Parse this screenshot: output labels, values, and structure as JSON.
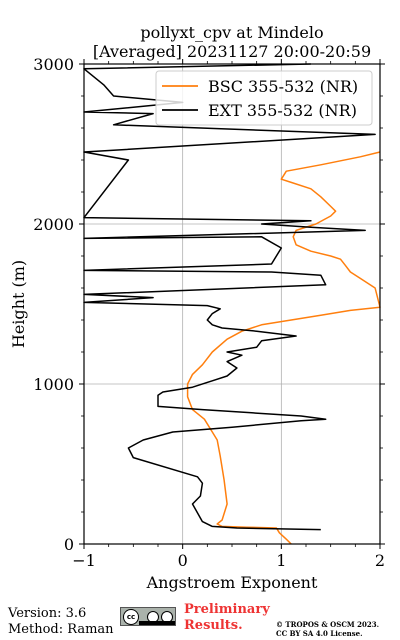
{
  "chart_data": {
    "type": "line",
    "title": [
      "pollyxt_cpv at Mindelo",
      "[Averaged] 20231127 20:00-20:59"
    ],
    "xlabel": "Angstroem Exponent",
    "ylabel": "Height (m)",
    "xlim": [
      -1,
      2
    ],
    "ylim": [
      0,
      3000
    ],
    "xticks": [
      -1,
      0,
      1,
      2
    ],
    "xtick_labels": [
      "−1",
      "0",
      "1",
      "2"
    ],
    "yticks": [
      0,
      1000,
      2000,
      3000
    ],
    "ytick_labels": [
      "0",
      "1000",
      "2000",
      "3000"
    ],
    "grid": true,
    "legend": "top-right",
    "series": [
      {
        "name": "BSC 355-532 (NR)",
        "color": "#ff7f0e",
        "points": [
          [
            1.1,
            0
          ],
          [
            1.05,
            30
          ],
          [
            0.98,
            70
          ],
          [
            0.95,
            100
          ],
          [
            0.65,
            105
          ],
          [
            0.4,
            110
          ],
          [
            0.35,
            125
          ],
          [
            0.4,
            150
          ],
          [
            0.45,
            250
          ],
          [
            0.42,
            400
          ],
          [
            0.38,
            550
          ],
          [
            0.35,
            650
          ],
          [
            0.3,
            700
          ],
          [
            0.22,
            780
          ],
          [
            0.1,
            840
          ],
          [
            0.05,
            920
          ],
          [
            0.05,
            1000
          ],
          [
            0.1,
            1060
          ],
          [
            0.2,
            1120
          ],
          [
            0.3,
            1200
          ],
          [
            0.45,
            1280
          ],
          [
            0.6,
            1330
          ],
          [
            0.8,
            1370
          ],
          [
            1.1,
            1400
          ],
          [
            1.4,
            1430
          ],
          [
            1.7,
            1460
          ],
          [
            2,
            1480
          ],
          [
            1.95,
            1600
          ],
          [
            1.8,
            1660
          ],
          [
            1.7,
            1700
          ],
          [
            1.65,
            1740
          ],
          [
            1.6,
            1780
          ],
          [
            1.5,
            1800
          ],
          [
            1.3,
            1830
          ],
          [
            1.15,
            1870
          ],
          [
            1.12,
            1920
          ],
          [
            1.15,
            1960
          ],
          [
            1.35,
            2000
          ],
          [
            1.5,
            2050
          ],
          [
            1.55,
            2080
          ],
          [
            1.5,
            2110
          ],
          [
            1.4,
            2170
          ],
          [
            1.3,
            2220
          ],
          [
            1.1,
            2260
          ],
          [
            1.0,
            2280
          ],
          [
            1.05,
            2330
          ],
          [
            1.4,
            2370
          ],
          [
            1.8,
            2420
          ],
          [
            2,
            2450
          ]
        ]
      },
      {
        "name": "EXT 355-532 (NR)",
        "color": "#000000",
        "points": [
          [
            1.4,
            90
          ],
          [
            0.55,
            100
          ],
          [
            0.3,
            110
          ],
          [
            0.2,
            140
          ],
          [
            0.1,
            250
          ],
          [
            0.18,
            300
          ],
          [
            0.2,
            380
          ],
          [
            0.15,
            420
          ],
          [
            -0.5,
            540
          ],
          [
            -0.55,
            600
          ],
          [
            -0.4,
            650
          ],
          [
            -0.1,
            700
          ],
          [
            0.5,
            730
          ],
          [
            1.2,
            770
          ],
          [
            1.45,
            780
          ],
          [
            1.2,
            800
          ],
          [
            0.7,
            820
          ],
          [
            0.2,
            840
          ],
          [
            -0.25,
            860
          ],
          [
            -0.25,
            930
          ],
          [
            -0.2,
            950
          ],
          [
            0.1,
            980
          ],
          [
            0.3,
            1020
          ],
          [
            0.45,
            1050
          ],
          [
            0.55,
            1100
          ],
          [
            0.45,
            1140
          ],
          [
            0.6,
            1180
          ],
          [
            0.45,
            1200
          ],
          [
            0.75,
            1230
          ],
          [
            0.8,
            1270
          ],
          [
            1.15,
            1300
          ],
          [
            0.75,
            1330
          ],
          [
            0.4,
            1350
          ],
          [
            0.3,
            1370
          ],
          [
            0.25,
            1400
          ],
          [
            0.3,
            1440
          ],
          [
            0.38,
            1470
          ],
          [
            0.25,
            1490
          ],
          [
            -1,
            1510
          ],
          [
            -0.3,
            1540
          ],
          [
            -1,
            1560
          ],
          [
            1.45,
            1620
          ],
          [
            1.4,
            1680
          ],
          [
            0.9,
            1700
          ],
          [
            -1,
            1710
          ],
          [
            0.9,
            1750
          ],
          [
            1.0,
            1850
          ],
          [
            0.8,
            1920
          ],
          [
            -1,
            1910
          ],
          [
            1.85,
            1960
          ],
          [
            1.3,
            1980
          ],
          [
            0.8,
            2000
          ],
          [
            1.3,
            2020
          ],
          [
            -1,
            2040
          ],
          [
            -0.55,
            2400
          ],
          [
            -1,
            2450
          ],
          [
            1.95,
            2560
          ],
          [
            -0.7,
            2620
          ],
          [
            -0.3,
            2690
          ],
          [
            -1,
            2700
          ],
          [
            0.0,
            2760
          ],
          [
            -0.7,
            2800
          ],
          [
            -0.8,
            2870
          ],
          [
            -1,
            2970
          ],
          [
            1.3,
            3000
          ]
        ]
      }
    ]
  },
  "footer": {
    "version": "Version: 3.6",
    "method": "Method: Raman",
    "preliminary": [
      "Preliminary",
      "Results."
    ],
    "preliminary_color": "#ee3333",
    "copyright": [
      "© TROPOS & OSCM 2023.",
      "CC BY SA 4.0 License."
    ],
    "badge_icon": "cc-by-sa-icon",
    "badge_text": "cc"
  }
}
